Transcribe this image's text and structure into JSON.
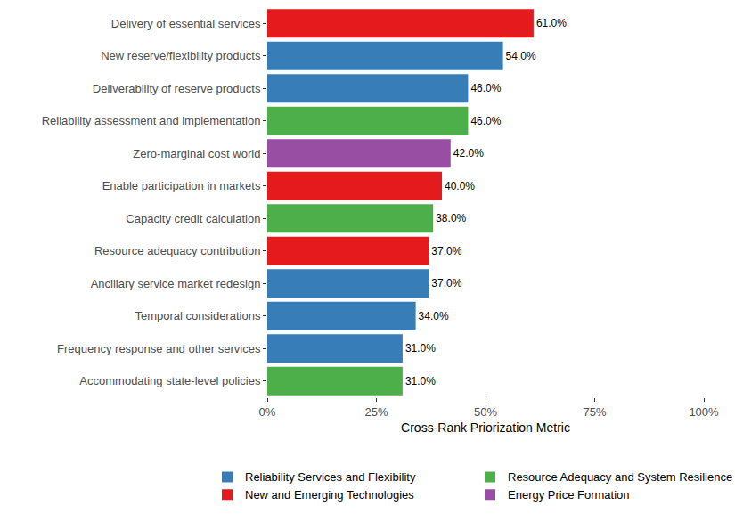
{
  "chart_data": {
    "type": "bar",
    "orientation": "horizontal",
    "x_label": "Cross-Rank Priorization Metric",
    "categories": [
      "Delivery of essential services",
      "New reserve/flexibility products",
      "Deliverability of reserve products",
      "Reliability assessment and implementation",
      "Zero-marginal cost world",
      "Enable participation in markets",
      "Capacity credit calculation",
      "Resource adequacy contribution",
      "Ancillary service market redesign",
      "Temporal considerations",
      "Frequency response and other services",
      "Accommodating state-level policies"
    ],
    "series": [
      {
        "name": "Reliability Services and Flexibility",
        "color": "#377EB8",
        "values": [
          null,
          54,
          46,
          null,
          null,
          null,
          null,
          null,
          37,
          34,
          31,
          null
        ],
        "value_labels": [
          null,
          "54.0%",
          "46.0%",
          null,
          null,
          null,
          null,
          null,
          "37.0%",
          "34.0%",
          "31.0%",
          null
        ]
      },
      {
        "name": "Resource Adequacy and System Resilience",
        "color": "#4DAF4A",
        "values": [
          null,
          null,
          null,
          46,
          null,
          null,
          38,
          null,
          null,
          null,
          null,
          31
        ],
        "value_labels": [
          null,
          null,
          null,
          "46.0%",
          null,
          null,
          "38.0%",
          null,
          null,
          null,
          null,
          "31.0%"
        ]
      },
      {
        "name": "New and Emerging Technologies",
        "color": "#E41A1C",
        "values": [
          61,
          null,
          null,
          null,
          null,
          40,
          null,
          37,
          null,
          null,
          null,
          null
        ],
        "value_labels": [
          "61.0%",
          null,
          null,
          null,
          null,
          "40.0%",
          null,
          "37.0%",
          null,
          null,
          null,
          null
        ]
      },
      {
        "name": "Energy Price Formation",
        "color": "#984EA3",
        "values": [
          null,
          null,
          null,
          null,
          42,
          null,
          null,
          null,
          null,
          null,
          null,
          null
        ],
        "value_labels": [
          null,
          null,
          null,
          null,
          "42.0%",
          null,
          null,
          null,
          null,
          null,
          null,
          null
        ]
      }
    ],
    "xlim": [
      0,
      100
    ],
    "xticks": [
      {
        "value": 0,
        "label": "0%"
      },
      {
        "value": 25,
        "label": "25%"
      },
      {
        "value": 50,
        "label": "50%"
      },
      {
        "value": 75,
        "label": "75%"
      },
      {
        "value": 100,
        "label": "100%"
      }
    ],
    "grid": false,
    "data_labels": true,
    "legend": "bottom"
  }
}
